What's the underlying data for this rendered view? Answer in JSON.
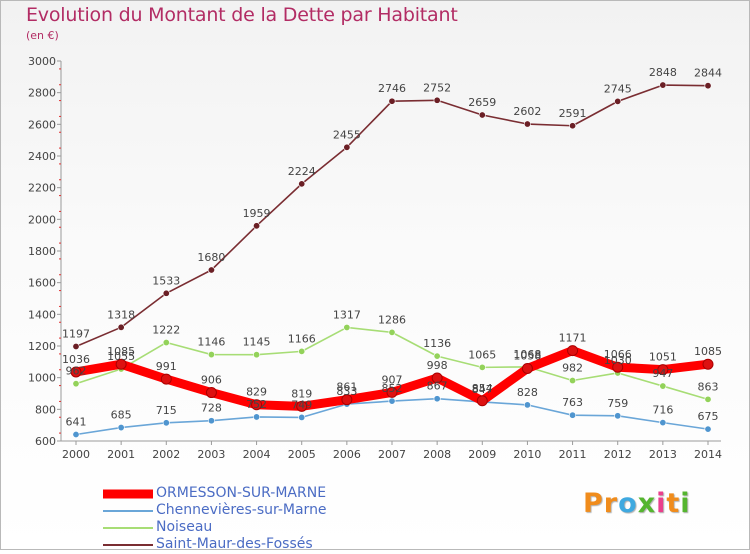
{
  "chart_data": {
    "type": "line",
    "title": "Evolution du Montant de la Dette par Habitant",
    "subtitle": "(en €)",
    "x": [
      "2000",
      "2001",
      "2002",
      "2003",
      "2004",
      "2005",
      "2006",
      "2007",
      "2008",
      "2009",
      "2010",
      "2011",
      "2012",
      "2013",
      "2014"
    ],
    "ylim": [
      600,
      3000
    ],
    "yticks": [
      "600",
      "800",
      "1000",
      "1200",
      "1400",
      "1600",
      "1800",
      "2000",
      "2200",
      "2400",
      "2600",
      "2800",
      "3000"
    ],
    "grid": false,
    "legend_position": "bottom-left",
    "series": [
      {
        "name": "ORMESSON-SUR-MARNE",
        "color": "#ff0000",
        "marker": "#dd1111",
        "values": [
          1036,
          1085,
          991,
          906,
          829,
          819,
          861,
          907,
          998,
          854,
          1058,
          1171,
          1066,
          1051,
          1085
        ]
      },
      {
        "name": "Chennevières-sur-Marne",
        "color": "#6aa6d8",
        "marker": "#4f95cf",
        "values": [
          641,
          685,
          715,
          728,
          752,
          749,
          833,
          852,
          867,
          847,
          828,
          763,
          759,
          716,
          675
        ]
      },
      {
        "name": "Noiseau",
        "color": "#a7dd75",
        "marker": "#93d25a",
        "values": [
          962,
          1055,
          1222,
          1146,
          1145,
          1166,
          1317,
          1286,
          1136,
          1065,
          1068,
          982,
          1030,
          947,
          863
        ]
      },
      {
        "name": "Saint-Maur-des-Fossés",
        "color": "#7a2d32",
        "marker": "#6b1f25",
        "values": [
          1197,
          1318,
          1533,
          1680,
          1959,
          2224,
          2455,
          2746,
          2752,
          2659,
          2602,
          2591,
          2745,
          2848,
          2844
        ]
      }
    ]
  },
  "logo": {
    "letters": [
      "P",
      "r",
      "o",
      "x",
      "i",
      "t",
      "i"
    ],
    "colors": [
      "#f08c1c",
      "#f08c1c",
      "#3fa9e0",
      "#55b52f",
      "#ea3f8c",
      "#f08c1c",
      "#55b52f"
    ]
  }
}
